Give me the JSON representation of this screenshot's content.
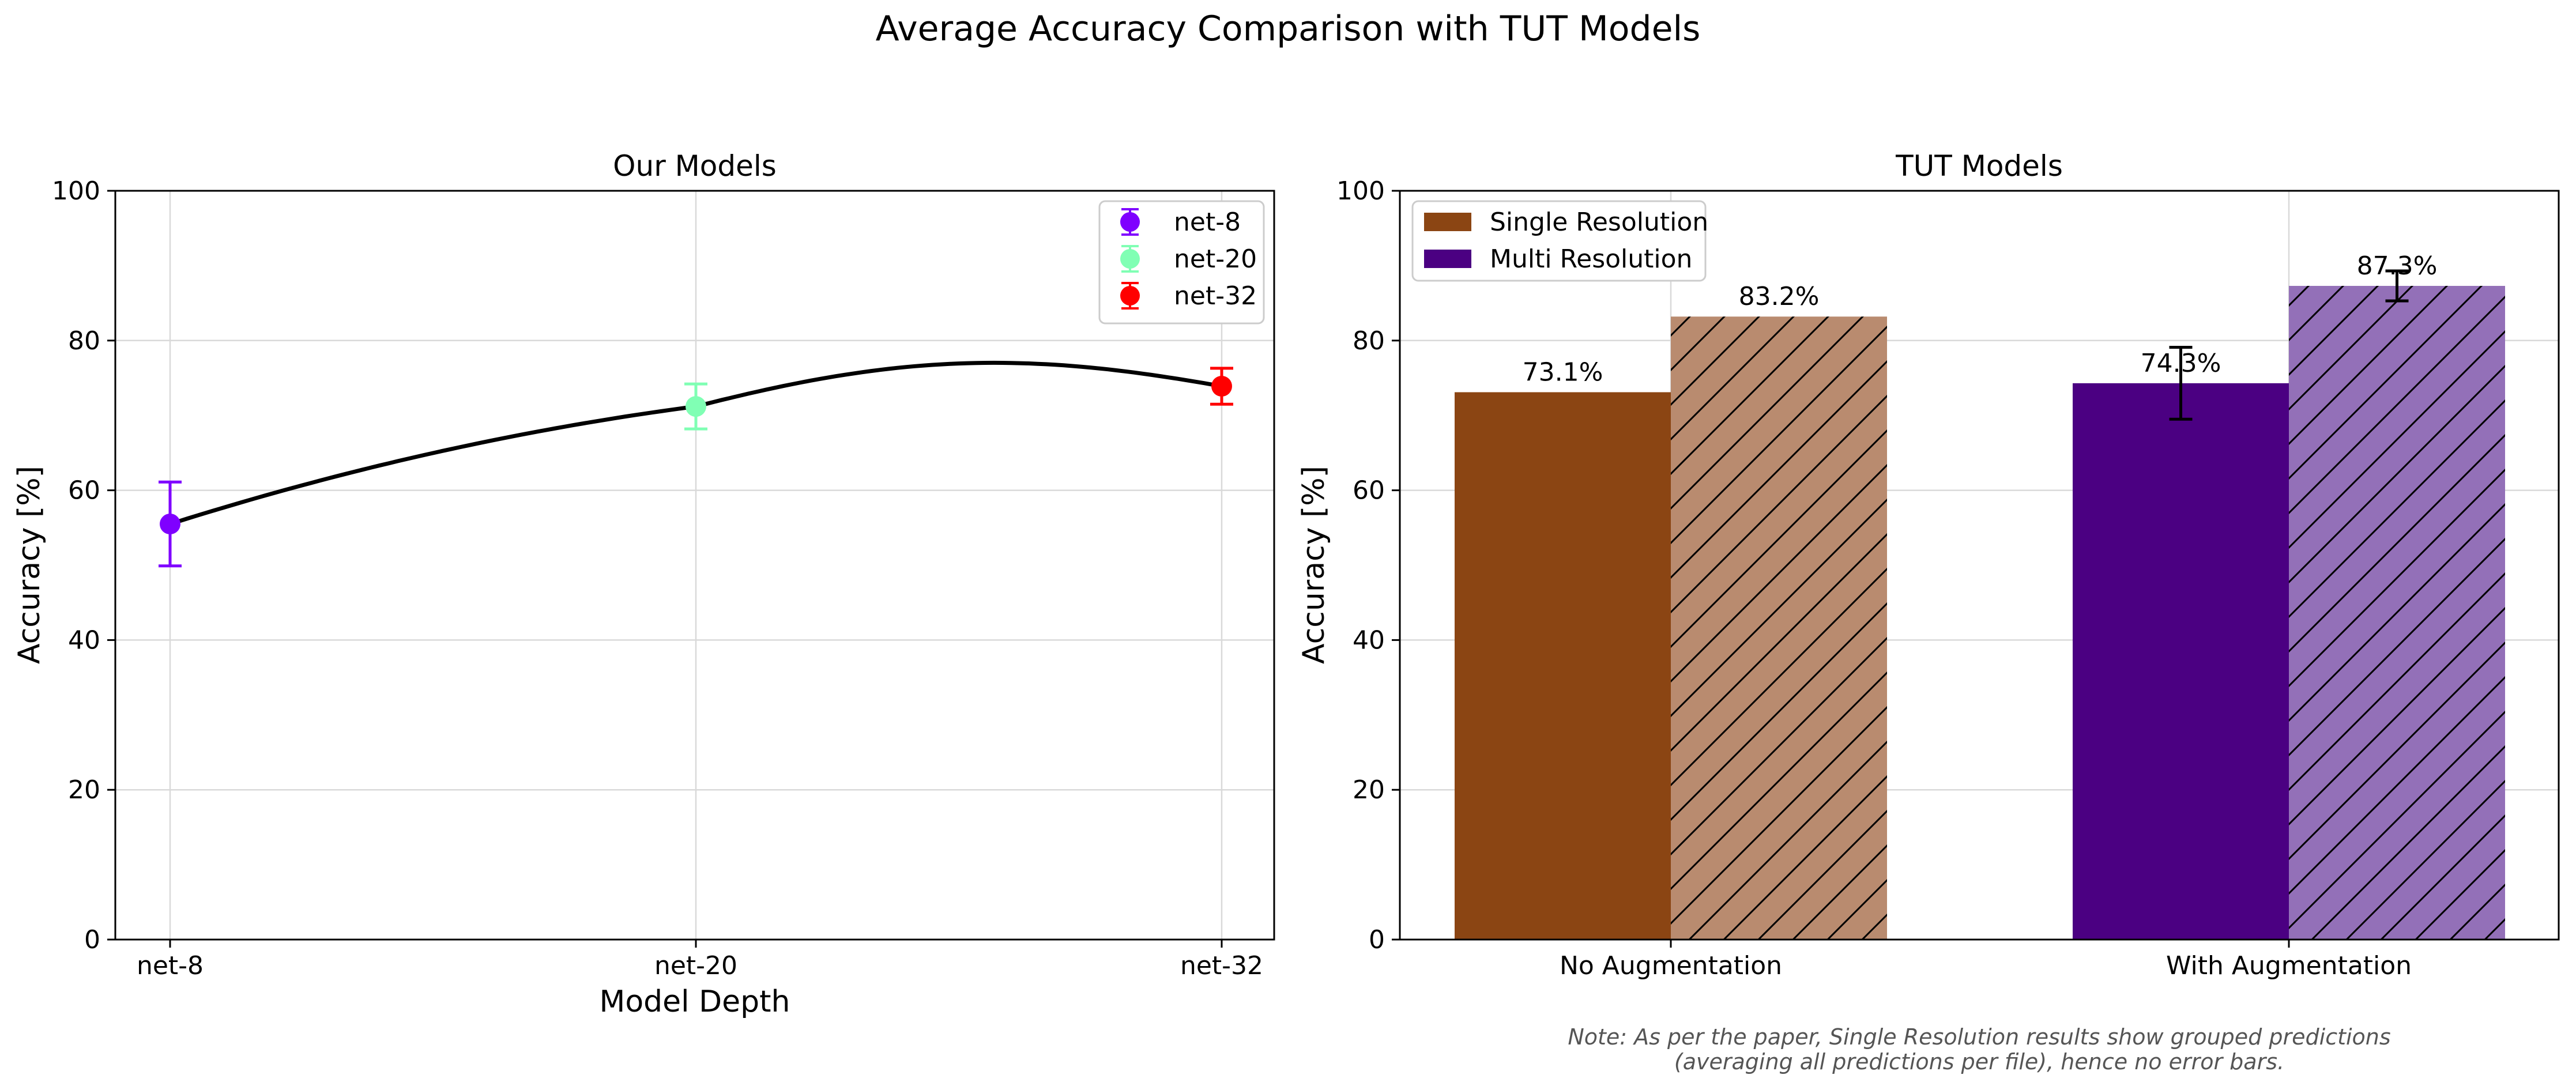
{
  "figure": {
    "title": "Average Accuracy Comparison with TUT Models",
    "note_line1": "Note: As per the paper, Single Resolution results show grouped predictions",
    "note_line2": "(averaging all predictions per file), hence no error bars."
  },
  "chart_data": [
    {
      "type": "line",
      "title": "Our Models",
      "xlabel": "Model Depth",
      "ylabel": "Accuracy [%]",
      "ylim": [
        0,
        100
      ],
      "yticks": [
        0,
        20,
        40,
        60,
        80,
        100
      ],
      "categories": [
        "net-8",
        "net-20",
        "net-32"
      ],
      "grid": true,
      "legend": "top-right",
      "series": [
        {
          "name": "net-8",
          "x": "net-8",
          "value": 55.5,
          "err": 5.6,
          "color": "#7f00ff"
        },
        {
          "name": "net-20",
          "x": "net-20",
          "value": 71.2,
          "err": 3.0,
          "color": "#80ffb4"
        },
        {
          "name": "net-32",
          "x": "net-32",
          "value": 73.9,
          "err": 2.4,
          "color": "#ff0000"
        }
      ],
      "curve": {
        "color": "#000000",
        "smooth": true,
        "peak_approx": 76.0
      }
    },
    {
      "type": "bar",
      "title": "TUT Models",
      "ylabel": "Accuracy [%]",
      "ylim": [
        0,
        100
      ],
      "yticks": [
        0,
        20,
        40,
        60,
        80,
        100
      ],
      "categories": [
        "No Augmentation",
        "With Augmentation"
      ],
      "grid": true,
      "legend": "top-left",
      "legend_entries": [
        {
          "name": "Single Resolution",
          "color": "#8b4513"
        },
        {
          "name": "Multi Resolution",
          "color": "#4b0082"
        }
      ],
      "bars": [
        {
          "category": "No Augmentation",
          "slot": 0,
          "value": 73.1,
          "label": "73.1%",
          "color": "#8b4513",
          "hatched": false,
          "err": null
        },
        {
          "category": "No Augmentation",
          "slot": 1,
          "value": 83.2,
          "label": "83.2%",
          "color": "#b98b6f",
          "hatched": true,
          "err": null
        },
        {
          "category": "With Augmentation",
          "slot": 0,
          "value": 74.3,
          "label": "74.3%",
          "color": "#4b0082",
          "hatched": false,
          "err": 4.8
        },
        {
          "category": "With Augmentation",
          "slot": 1,
          "value": 87.3,
          "label": "87.3%",
          "color": "#9370b8",
          "hatched": true,
          "err": 2.0
        }
      ]
    }
  ]
}
